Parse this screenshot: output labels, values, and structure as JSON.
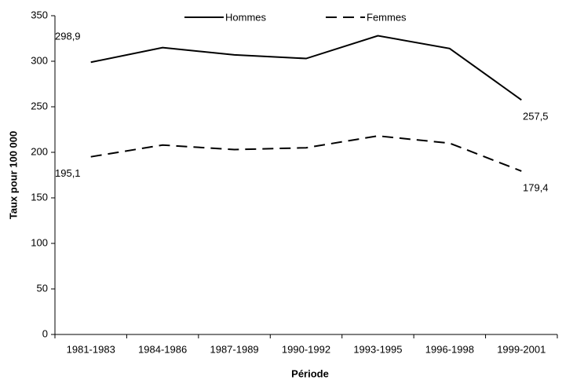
{
  "chart_data": {
    "type": "line",
    "x_label": "Période",
    "y_label": "Taux pour 100 000",
    "categories": [
      "1981-1983",
      "1984-1986",
      "1987-1989",
      "1990-1992",
      "1993-1995",
      "1996-1998",
      "1999-2001"
    ],
    "series": [
      {
        "name": "Hommes",
        "color": "#000000",
        "dash": "solid",
        "values": [
          298.9,
          315,
          307,
          303,
          328,
          314,
          257.5
        ],
        "value_labels": [
          "298,9",
          null,
          null,
          null,
          null,
          null,
          "257,5"
        ]
      },
      {
        "name": "Femmes",
        "color": "#000000",
        "dash": "dashed",
        "values": [
          195.1,
          208,
          203,
          205,
          218,
          210,
          179.4
        ],
        "value_labels": [
          "195,1",
          null,
          null,
          null,
          null,
          null,
          "179,4"
        ]
      }
    ],
    "ylim": [
      0,
      350
    ],
    "yticks": [
      0,
      50,
      100,
      150,
      200,
      250,
      300,
      350
    ],
    "grid": false,
    "legend": "top"
  }
}
